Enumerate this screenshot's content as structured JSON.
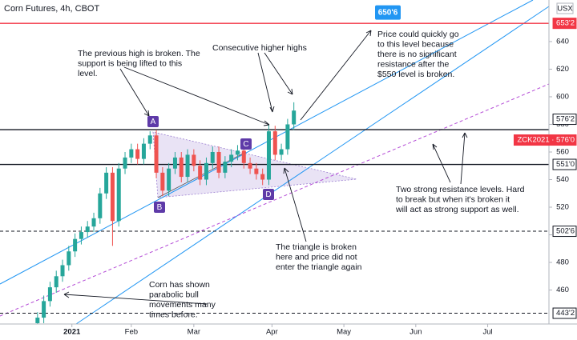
{
  "chart_data": {
    "type": "candlestick",
    "title": "Corn Futures, 4h, CBOT",
    "currency": "USX",
    "ylim": [
      435.4,
      670.1
    ],
    "yticks": [
      460,
      480,
      500,
      520,
      540,
      560,
      580,
      600,
      620,
      640
    ],
    "xlim": [
      -23,
      152.6
    ],
    "xticks": [
      {
        "value": 0,
        "label": "2021"
      },
      {
        "value": 19,
        "label": "Feb"
      },
      {
        "value": 39,
        "label": "Mar"
      },
      {
        "value": 64,
        "label": "Apr"
      },
      {
        "value": 87,
        "label": "May"
      },
      {
        "value": 110,
        "label": "Jun"
      },
      {
        "value": 133,
        "label": "Jul"
      }
    ],
    "up_color": "#26a69a",
    "down_color": "#ef5350",
    "candles": {
      "x": [
        -11,
        -9,
        -7,
        -5,
        -3,
        -1,
        1,
        3,
        5,
        7,
        9,
        11,
        13,
        15,
        17,
        19,
        21,
        23,
        25,
        27,
        29,
        31,
        33,
        35,
        37,
        39,
        41,
        43,
        45,
        47,
        49,
        51,
        53,
        55,
        57,
        59,
        61,
        63,
        65,
        67,
        69,
        71
      ],
      "open": [
        436,
        440,
        452,
        462,
        470,
        478,
        488,
        497,
        502,
        506,
        512,
        530,
        545,
        510,
        548,
        556,
        562,
        555,
        566,
        572,
        545,
        532,
        548,
        556,
        542,
        558,
        550,
        540,
        552,
        560,
        545,
        553,
        558,
        561,
        552,
        548,
        544,
        540,
        575,
        558,
        562,
        580
      ],
      "high": [
        444,
        456,
        466,
        474,
        482,
        492,
        501,
        506,
        510,
        516,
        534,
        549,
        549,
        552,
        560,
        566,
        566,
        570,
        575,
        576,
        549,
        552,
        560,
        560,
        562,
        562,
        554,
        556,
        564,
        564,
        557,
        562,
        565,
        565,
        556,
        552,
        548,
        580,
        579,
        566,
        584,
        596
      ],
      "low": [
        434,
        436,
        448,
        458,
        466,
        474,
        484,
        493,
        498,
        502,
        508,
        526,
        492,
        506,
        544,
        552,
        551,
        551,
        562,
        541,
        528,
        528,
        544,
        538,
        538,
        546,
        536,
        536,
        548,
        541,
        541,
        549,
        554,
        548,
        544,
        540,
        536,
        536,
        554,
        554,
        558,
        576
      ],
      "close": [
        440,
        452,
        462,
        470,
        478,
        488,
        497,
        502,
        506,
        512,
        530,
        545,
        510,
        548,
        556,
        562,
        555,
        566,
        572,
        545,
        532,
        548,
        556,
        542,
        558,
        550,
        540,
        552,
        560,
        545,
        553,
        558,
        561,
        552,
        548,
        544,
        540,
        575,
        558,
        562,
        580,
        590
      ]
    },
    "levels": [
      {
        "value": 653.2,
        "label": "653'2",
        "color": "#f23645",
        "style": "solid"
      },
      {
        "value": 576.2,
        "label": "576'2",
        "color": "#131722",
        "style": "solid"
      },
      {
        "value": 576.0,
        "label": "ZCK2021 · 576'0",
        "color": "#f23645",
        "style": "tag"
      },
      {
        "value": 551.0,
        "label": "551'0",
        "color": "#131722",
        "style": "solid"
      },
      {
        "value": 502.6,
        "label": "502'6",
        "color": "#131722",
        "style": "dashed"
      },
      {
        "value": 443.2,
        "label": "443'2",
        "color": "#131722",
        "style": "dashed"
      }
    ],
    "target": {
      "value": 650.6,
      "label": "650'6"
    },
    "points": [
      "A",
      "B",
      "C",
      "D"
    ],
    "annotations": [
      [
        "The previous high is broken. The",
        "support is being lifted to this",
        "level."
      ],
      [
        "Consecutive higher highs"
      ],
      [
        "Price could quickly go",
        "to this level because",
        "there is no significant",
        "resistance after the",
        "$550 level is broken."
      ],
      [
        "Two strong resistance levels. Hard",
        "to break but when it's broken it",
        "will act as strong support as well."
      ],
      [
        "The triangle is broken",
        "here and price did not",
        "enter the triangle again"
      ],
      [
        "Corn has shown",
        "parabolic bull",
        "movements many",
        "times before."
      ]
    ]
  }
}
